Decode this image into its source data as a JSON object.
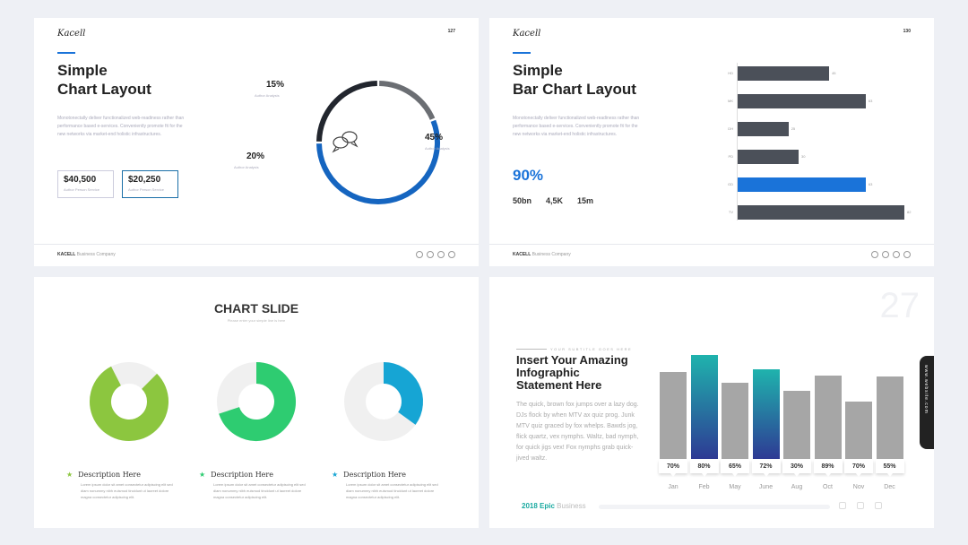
{
  "slide1": {
    "logo": "Kacell",
    "page": "127",
    "title_line1": "Simple",
    "title_line2": "Chart Layout",
    "body": "Monotonectally deliver functionalized web-readiness rather than performance based e-services. Conveniently promote fit for the new networks via market-end holistic infrastructures.",
    "box1_value": "$40,500",
    "box1_sub": "Author Person Service",
    "box2_value": "$20,250",
    "box2_sub": "Author Person Service",
    "pct1": "15%",
    "pct1_sub": "Author Analysis",
    "pct2": "45%",
    "pct2_sub": "Author Analysis",
    "pct3": "20%",
    "pct3_sub": "Author Analysis",
    "footer_brand": "KACELL",
    "footer_text": "Business Company",
    "chat_icon": "chat-bubbles-icon",
    "donut": [
      {
        "label": "15%",
        "value": 15,
        "color": "#6b6e73"
      },
      {
        "label": "45%",
        "value": 45,
        "color": "#1565c0"
      },
      {
        "label": "20%",
        "value": 20,
        "color": "#22262e"
      }
    ]
  },
  "slide2": {
    "logo": "Kacell",
    "page": "130",
    "title_line1": "Simple",
    "title_line2": "Bar Chart Layout",
    "body": "Monotonectally deliver functionalized web-readiness rather than performance based e-services. Conveniently promote fit for the new networks via market-end holistic infrastructures.",
    "big_pct": "90%",
    "stats": [
      "50bn",
      "4,5K",
      "15m"
    ],
    "footer_brand": "KACELL",
    "footer_text": "Business Company"
  },
  "slide3": {
    "title": "CHART SLIDE",
    "subtitle": "Please enter your simple line is here",
    "donuts": [
      {
        "value": 80,
        "color": "#8cc63f"
      },
      {
        "value": 70,
        "color": "#2ecc71"
      },
      {
        "value": 35,
        "color": "#16a5d4"
      }
    ],
    "descriptions": [
      {
        "head": "Description Here",
        "star_color": "#8cc63f",
        "body": "Lorem ipsum dolor sit amet consectetur adipiscing elit sed diam nonummy nibh euismod tincidunt ut laoreet dolore magna consectetur adipiscing elit."
      },
      {
        "head": "Description Here",
        "star_color": "#2ecc71",
        "body": "Lorem ipsum dolor sit amet consectetur adipiscing elit sed diam nonummy nibh euismod tincidunt ut laoreet dolore magna consectetur adipiscing elit."
      },
      {
        "head": "Description Here",
        "star_color": "#16a5d4",
        "body": "Lorem ipsum dolor sit amet consectetur adipiscing elit sed diam nonummy nibh euismod tincidunt ut laoreet dolore magna consectetur adipiscing elit."
      }
    ]
  },
  "slide4": {
    "big_number": "27",
    "kicker": "YOUR SUBTITLE GOES HERE",
    "title_line1": "Insert Your Amazing",
    "title_line2": "Infographic",
    "title_line3": "Statement Here",
    "body": "The quick, brown fox jumps over a lazy dog. DJs flock by when MTV ax quiz prog. Junk MTV quiz graced by fox whelps. Bawds jog, flick quartz, vex nymphs. Waltz, bad nymph, for quick jigs vex! Fox nymphs grab quick-jived waltz.",
    "footer_year": "2018 Epic",
    "footer_word": "Business",
    "side_tab": "www.website.com"
  },
  "chart_data": [
    {
      "type": "bar",
      "orientation": "horizontal",
      "categories": [
        "HD",
        "MK",
        "DH",
        "PD",
        "GD",
        "TV"
      ],
      "values": [
        45,
        63,
        25,
        30,
        63,
        82
      ],
      "highlight_index": 4,
      "colors": {
        "default": "#4b5059",
        "highlight": "#1a73d9"
      }
    },
    {
      "type": "bar",
      "categories": [
        "Jan",
        "Feb",
        "May",
        "June",
        "Aug",
        "Oct",
        "Nov",
        "Dec"
      ],
      "values": [
        70,
        80,
        65,
        72,
        30,
        89,
        70,
        55
      ],
      "value_labels": [
        "70%",
        "80%",
        "65%",
        "72%",
        "30%",
        "89%",
        "70%",
        "55%"
      ],
      "bar_heights_pct": [
        60,
        72,
        53,
        62,
        47,
        58,
        40,
        57
      ],
      "gradient_bars": [
        1,
        3
      ],
      "colors": {
        "default": "#a6a6a6",
        "gradient_top": "#1fb3ad",
        "gradient_bottom": "#2e3a94"
      }
    }
  ]
}
